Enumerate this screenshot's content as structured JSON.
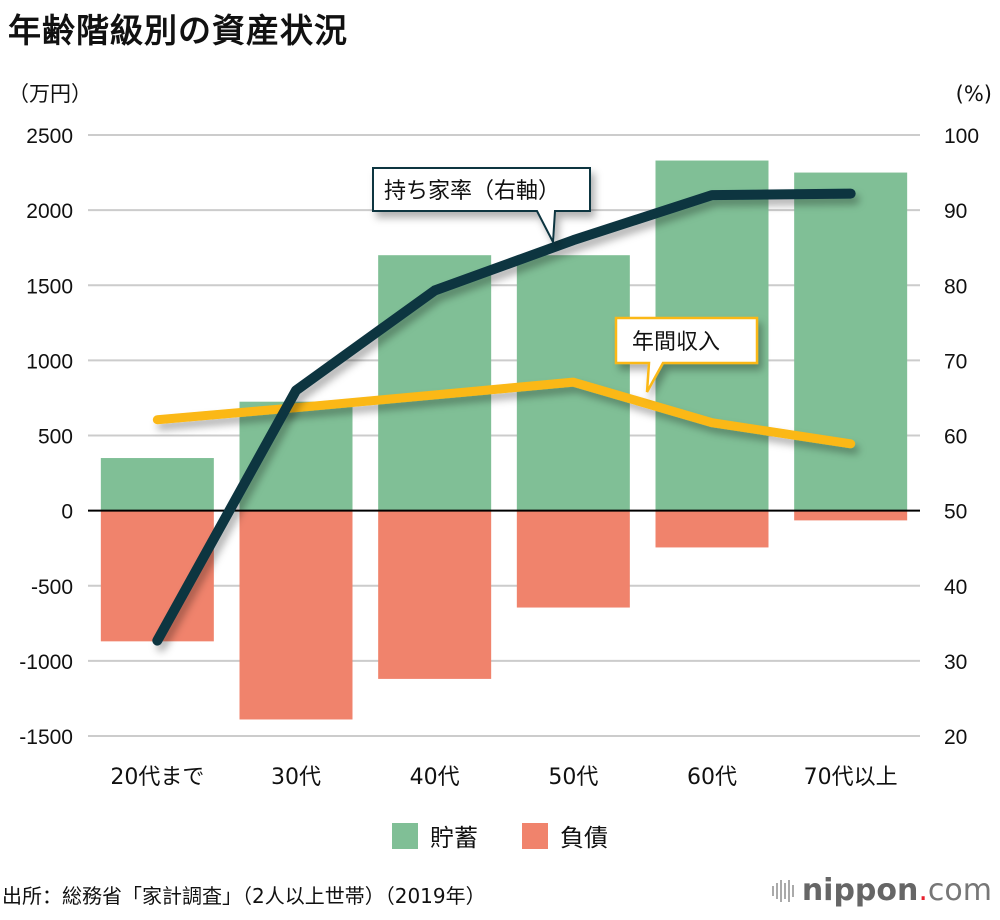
{
  "title": "年齢階級別の資産状況",
  "left_axis_unit": "（万円）",
  "right_axis_unit": "(%)",
  "legend": [
    {
      "label": "貯蓄",
      "color": "#80bf96"
    },
    {
      "label": "負債",
      "color": "#f0836c"
    }
  ],
  "callouts": {
    "home_ownership": "持ち家率（右軸）",
    "income": "年間収入"
  },
  "source": "出所：総務省「家計調査」（2人以上世帯）（2019年）",
  "logo": {
    "brand": "nippon",
    "dot": ".",
    "tld": "com"
  },
  "colors": {
    "savings": "#80bf96",
    "debt": "#f0836c",
    "home_ownership_line": "#0b3440",
    "income_line": "#fbb814",
    "gridline": "#cccccc",
    "zero_line": "#000000"
  },
  "chart_data": {
    "type": "bar",
    "title": "年齢階級別の資産状況",
    "categories": [
      "20代まで",
      "30代",
      "40代",
      "50代",
      "60代",
      "70代以上"
    ],
    "left_axis": {
      "label": "万円",
      "ylim": [
        -1500,
        2500
      ],
      "ticks": [
        2500,
        2000,
        1500,
        1000,
        500,
        0,
        -500,
        -1000,
        -1500
      ]
    },
    "right_axis": {
      "label": "%",
      "ylim": [
        20,
        100
      ],
      "ticks": [
        100,
        90,
        80,
        70,
        60,
        50,
        40,
        30,
        20
      ]
    },
    "grid": true,
    "legend_position": "bottom-center",
    "series": [
      {
        "name": "貯蓄",
        "type": "bar",
        "axis": "left",
        "values": [
          350,
          725,
          1700,
          1700,
          2330,
          2250
        ]
      },
      {
        "name": "負債",
        "type": "bar",
        "axis": "left",
        "values": [
          -870,
          -1390,
          -1120,
          -645,
          -245,
          -65
        ]
      },
      {
        "name": "年間収入",
        "type": "line",
        "axis": "left",
        "values": [
          605,
          685,
          770,
          855,
          585,
          445
        ]
      },
      {
        "name": "持ち家率（右軸）",
        "type": "line",
        "axis": "right",
        "values": [
          32.7,
          66.0,
          79.3,
          86.0,
          92.0,
          92.2
        ]
      }
    ]
  }
}
